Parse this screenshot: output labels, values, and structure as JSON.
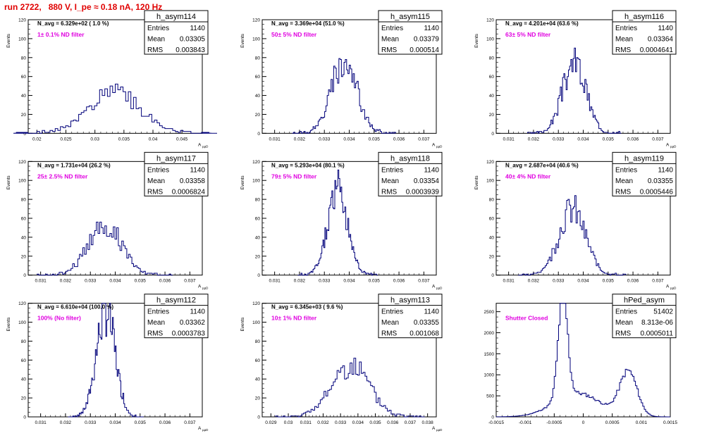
{
  "run_title": "run 2722,   880 V, I_pe ≈ 0.18 nA, 120 Hz",
  "colors": {
    "title": "#e00000",
    "hist": "#00007a",
    "annotation": "#e000e0",
    "frame": "#000000"
  },
  "stat_labels": {
    "entries": "Entries",
    "mean": "Mean",
    "rms": "RMS"
  },
  "chart_data": [
    {
      "type": "histogram",
      "name": "h_asym114",
      "nline": "N_avg = 6.329e+02 ( 1.0 %)",
      "filter": "1± 0.1% ND filter",
      "entries": "1140",
      "mean": "0.03305",
      "rms": "0.003843",
      "ylabel": "Events",
      "xlabel": "A_uuD",
      "xlim": [
        0.0185,
        0.0485
      ],
      "ylim": [
        0,
        120
      ],
      "xticks": [
        0.02,
        0.025,
        0.03,
        0.035,
        0.04,
        0.045
      ],
      "xticklabels": [
        "0.02",
        "0.025",
        "0.03",
        "0.035",
        "0.04",
        "0.045"
      ],
      "yticks": [
        0,
        20,
        40,
        60,
        80,
        100,
        120
      ],
      "peak": {
        "center": 0.0335,
        "width": 0.0045,
        "height": 42,
        "bins": 80,
        "seed": 1
      }
    },
    {
      "type": "histogram",
      "name": "h_asym115",
      "nline": "N_avg = 3.369e+04 (51.0 %)",
      "filter": "50± 5% ND filter",
      "entries": "1140",
      "mean": "0.03379",
      "rms": "0.000514",
      "ylabel": "Events",
      "xlabel": "A_uuD",
      "xlim": [
        0.0305,
        0.0375
      ],
      "ylim": [
        0,
        120
      ],
      "xticks": [
        0.031,
        0.032,
        0.033,
        0.034,
        0.035,
        0.036,
        0.037
      ],
      "xticklabels": [
        "0.031",
        "0.032",
        "0.033",
        "0.034",
        "0.035",
        "0.036",
        "0.037"
      ],
      "yticks": [
        0,
        20,
        40,
        60,
        80,
        100,
        120
      ],
      "peak": {
        "center": 0.03379,
        "width": 0.00052,
        "height": 78,
        "bins": 80,
        "seed": 2
      }
    },
    {
      "type": "histogram",
      "name": "h_asym116",
      "nline": "N_avg = 4.201e+04 (63.6 %)",
      "filter": "63± 5% ND filter",
      "entries": "1140",
      "mean": "0.03364",
      "rms": "0.0004641",
      "ylabel": "Events",
      "xlabel": "A_uuD",
      "xlim": [
        0.0305,
        0.0375
      ],
      "ylim": [
        0,
        120
      ],
      "xticks": [
        0.031,
        0.032,
        0.033,
        0.034,
        0.035,
        0.036,
        0.037
      ],
      "xticklabels": [
        "0.031",
        "0.032",
        "0.033",
        "0.034",
        "0.035",
        "0.036",
        "0.037"
      ],
      "yticks": [
        0,
        20,
        40,
        60,
        80,
        100,
        120
      ],
      "peak": {
        "center": 0.03364,
        "width": 0.00047,
        "height": 75,
        "bins": 80,
        "seed": 3
      }
    },
    {
      "type": "histogram",
      "name": "h_asym117",
      "nline": "N_avg = 1.731e+04 (26.2 %)",
      "filter": "25± 2.5% ND filter",
      "entries": "1140",
      "mean": "0.03358",
      "rms": "0.0006824",
      "ylabel": "Events",
      "xlabel": "A_uuD",
      "xlim": [
        0.0305,
        0.0375
      ],
      "ylim": [
        0,
        120
      ],
      "xticks": [
        0.031,
        0.032,
        0.033,
        0.034,
        0.035,
        0.036,
        0.037
      ],
      "xticklabels": [
        "0.031",
        "0.032",
        "0.033",
        "0.034",
        "0.035",
        "0.036",
        "0.037"
      ],
      "yticks": [
        0,
        20,
        40,
        60,
        80,
        100,
        120
      ],
      "peak": {
        "center": 0.03358,
        "width": 0.00068,
        "height": 53,
        "bins": 80,
        "seed": 4
      }
    },
    {
      "type": "histogram",
      "name": "h_asym118",
      "nline": "N_avg = 5.293e+04 (80.1 %)",
      "filter": "79± 5% ND filter",
      "entries": "1140",
      "mean": "0.03354",
      "rms": "0.0003939",
      "ylabel": "Events",
      "xlabel": "A_uuD",
      "xlim": [
        0.0305,
        0.0375
      ],
      "ylim": [
        0,
        120
      ],
      "xticks": [
        0.031,
        0.032,
        0.033,
        0.034,
        0.035,
        0.036,
        0.037
      ],
      "xticklabels": [
        "0.031",
        "0.032",
        "0.033",
        "0.034",
        "0.035",
        "0.036",
        "0.037"
      ],
      "yticks": [
        0,
        20,
        40,
        60,
        80,
        100,
        120
      ],
      "peak": {
        "center": 0.03354,
        "width": 0.0004,
        "height": 90,
        "bins": 80,
        "seed": 5
      }
    },
    {
      "type": "histogram",
      "name": "h_asym119",
      "nline": "N_avg = 2.687e+04 (40.6 %)",
      "filter": "40± 4% ND filter",
      "entries": "1140",
      "mean": "0.03355",
      "rms": "0.0005446",
      "ylabel": "Events",
      "xlabel": "A_uuD",
      "xlim": [
        0.0305,
        0.0375
      ],
      "ylim": [
        0,
        120
      ],
      "xticks": [
        0.031,
        0.032,
        0.033,
        0.034,
        0.035,
        0.036,
        0.037
      ],
      "xticklabels": [
        "0.031",
        "0.032",
        "0.033",
        "0.034",
        "0.035",
        "0.036",
        "0.037"
      ],
      "yticks": [
        0,
        20,
        40,
        60,
        80,
        100,
        120
      ],
      "peak": {
        "center": 0.03355,
        "width": 0.00054,
        "height": 69,
        "bins": 80,
        "seed": 6
      }
    },
    {
      "type": "histogram",
      "name": "h_asym112",
      "nline": "N_avg = 6.610e+04 (100.0 %)",
      "filter": "100% (No filter)",
      "entries": "1140",
      "mean": "0.03362",
      "rms": "0.0003783",
      "ylabel": "Events",
      "xlabel": "A_uuD",
      "xlim": [
        0.0305,
        0.0375
      ],
      "ylim": [
        0,
        120
      ],
      "xticks": [
        0.031,
        0.032,
        0.033,
        0.034,
        0.035,
        0.036,
        0.037
      ],
      "xticklabels": [
        "0.031",
        "0.032",
        "0.033",
        "0.034",
        "0.035",
        "0.036",
        "0.037"
      ],
      "yticks": [
        0,
        20,
        40,
        60,
        80,
        100,
        120
      ],
      "peak": {
        "center": 0.03362,
        "width": 0.00038,
        "height": 112,
        "bins": 80,
        "seed": 7
      }
    },
    {
      "type": "histogram",
      "name": "h_asym113",
      "nline": "N_avg = 6.345e+03 ( 9.6 %)",
      "filter": "10± 1% ND filter",
      "entries": "1140",
      "mean": "0.03355",
      "rms": "0.001068",
      "ylabel": "Events",
      "xlabel": "A_uuD",
      "xlim": [
        0.0285,
        0.0385
      ],
      "ylim": [
        0,
        120
      ],
      "xticks": [
        0.029,
        0.03,
        0.031,
        0.032,
        0.033,
        0.034,
        0.035,
        0.036,
        0.037,
        0.038
      ],
      "xticklabels": [
        "0.029",
        "0.03",
        "0.031",
        "0.032",
        "0.033",
        "0.034",
        "0.035",
        "0.036",
        "0.037",
        "0.038"
      ],
      "yticks": [
        0,
        20,
        40,
        60,
        80,
        100,
        120
      ],
      "peak": {
        "center": 0.03355,
        "width": 0.00107,
        "height": 55,
        "bins": 80,
        "seed": 8
      }
    },
    {
      "type": "histogram",
      "name": "hPed_asym",
      "nline": "",
      "filter": "Shutter Closed",
      "entries": "51402",
      "mean": "8.313e-06",
      "rms": "0.0005011",
      "ylabel": "",
      "xlabel": "",
      "xlim": [
        -0.0015,
        0.0015
      ],
      "ylim": [
        0,
        2700
      ],
      "xticks": [
        -0.0015,
        -0.001,
        -0.0005,
        0,
        0.0005,
        0.001,
        0.0015
      ],
      "xticklabels": [
        "-0.0015",
        "-0.001",
        "-0.0005",
        "0",
        "0.0005",
        "0.001",
        "0.0015"
      ],
      "yticks": [
        0,
        500,
        1000,
        1500,
        2000,
        2500
      ],
      "peds": [
        {
          "center": -0.00035,
          "width": 8e-05,
          "height": 2500
        },
        {
          "center": -0.0001,
          "width": 0.0004,
          "height": 560
        },
        {
          "center": 0.00078,
          "width": 0.00015,
          "height": 1050
        }
      ]
    }
  ]
}
